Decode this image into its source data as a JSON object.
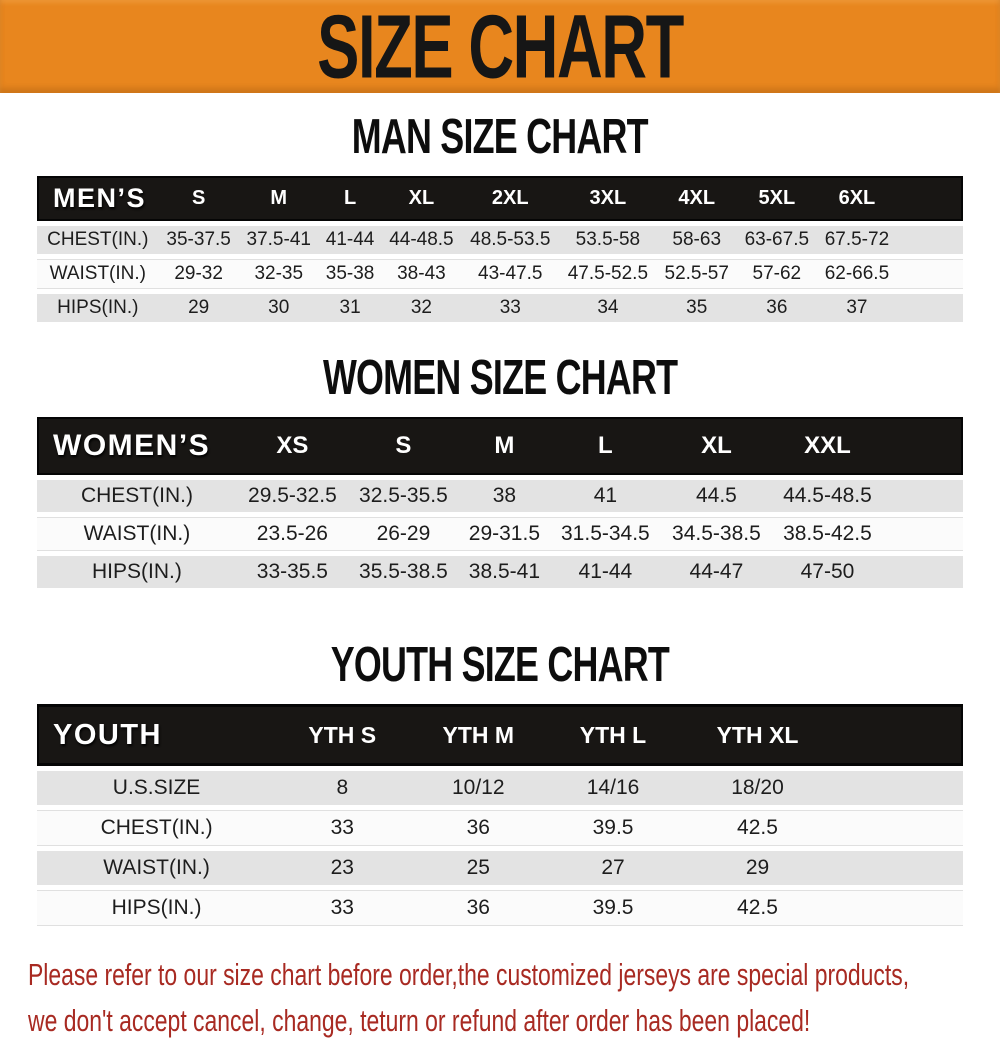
{
  "banner": {
    "title": "SIZE CHART"
  },
  "chart_data": [
    {
      "type": "table",
      "title": "MAN SIZE CHART",
      "columns": [
        "MEN’S",
        "S",
        "M",
        "L",
        "XL",
        "2XL",
        "3XL",
        "4XL",
        "5XL",
        "6XL"
      ],
      "rows": [
        [
          "CHEST(IN.)",
          "35-37.5",
          "37.5-41",
          "41-44",
          "44-48.5",
          "48.5-53.5",
          "53.5-58",
          "58-63",
          "63-67.5",
          "67.5-72"
        ],
        [
          "WAIST(IN.)",
          "29-32",
          "32-35",
          "35-38",
          "38-43",
          "43-47.5",
          "47.5-52.5",
          "52.5-57",
          "57-62",
          "62-66.5"
        ],
        [
          "HIPS(IN.)",
          "29",
          "30",
          "31",
          "32",
          "33",
          "34",
          "35",
          "36",
          "37"
        ]
      ]
    },
    {
      "type": "table",
      "title": "WOMEN SIZE CHART",
      "columns": [
        "WOMEN’S",
        "XS",
        "S",
        "M",
        "L",
        "XL",
        "XXL"
      ],
      "rows": [
        [
          "CHEST(IN.)",
          "29.5-32.5",
          "32.5-35.5",
          "38",
          "41",
          "44.5",
          "44.5-48.5"
        ],
        [
          "WAIST(IN.)",
          "23.5-26",
          "26-29",
          "29-31.5",
          "31.5-34.5",
          "34.5-38.5",
          "38.5-42.5"
        ],
        [
          "HIPS(IN.)",
          "33-35.5",
          "35.5-38.5",
          "38.5-41",
          "41-44",
          "44-47",
          "47-50"
        ]
      ]
    },
    {
      "type": "table",
      "title": "YOUTH SIZE CHART",
      "columns": [
        "YOUTH",
        "YTH S",
        "YTH M",
        "YTH L",
        "YTH XL"
      ],
      "rows": [
        [
          "U.S.SIZE",
          "8",
          "10/12",
          "14/16",
          "18/20"
        ],
        [
          "CHEST(IN.)",
          "33",
          "36",
          "39.5",
          "42.5"
        ],
        [
          "WAIST(IN.)",
          "23",
          "25",
          "27",
          "29"
        ],
        [
          "HIPS(IN.)",
          "33",
          "36",
          "39.5",
          "42.5"
        ]
      ]
    }
  ],
  "footer": {
    "line1": "Please refer to our size chart before order,the customized jerseys are special products,",
    "line2": "we don't accept cancel, change, teturn or refund after order has been placed!"
  },
  "colors": {
    "banner_bg": "#E8861E",
    "header_bar": "#181614",
    "row_gray": "#E3E3E3",
    "row_white": "#FBFBFB",
    "footer_text": "#A82A22"
  }
}
